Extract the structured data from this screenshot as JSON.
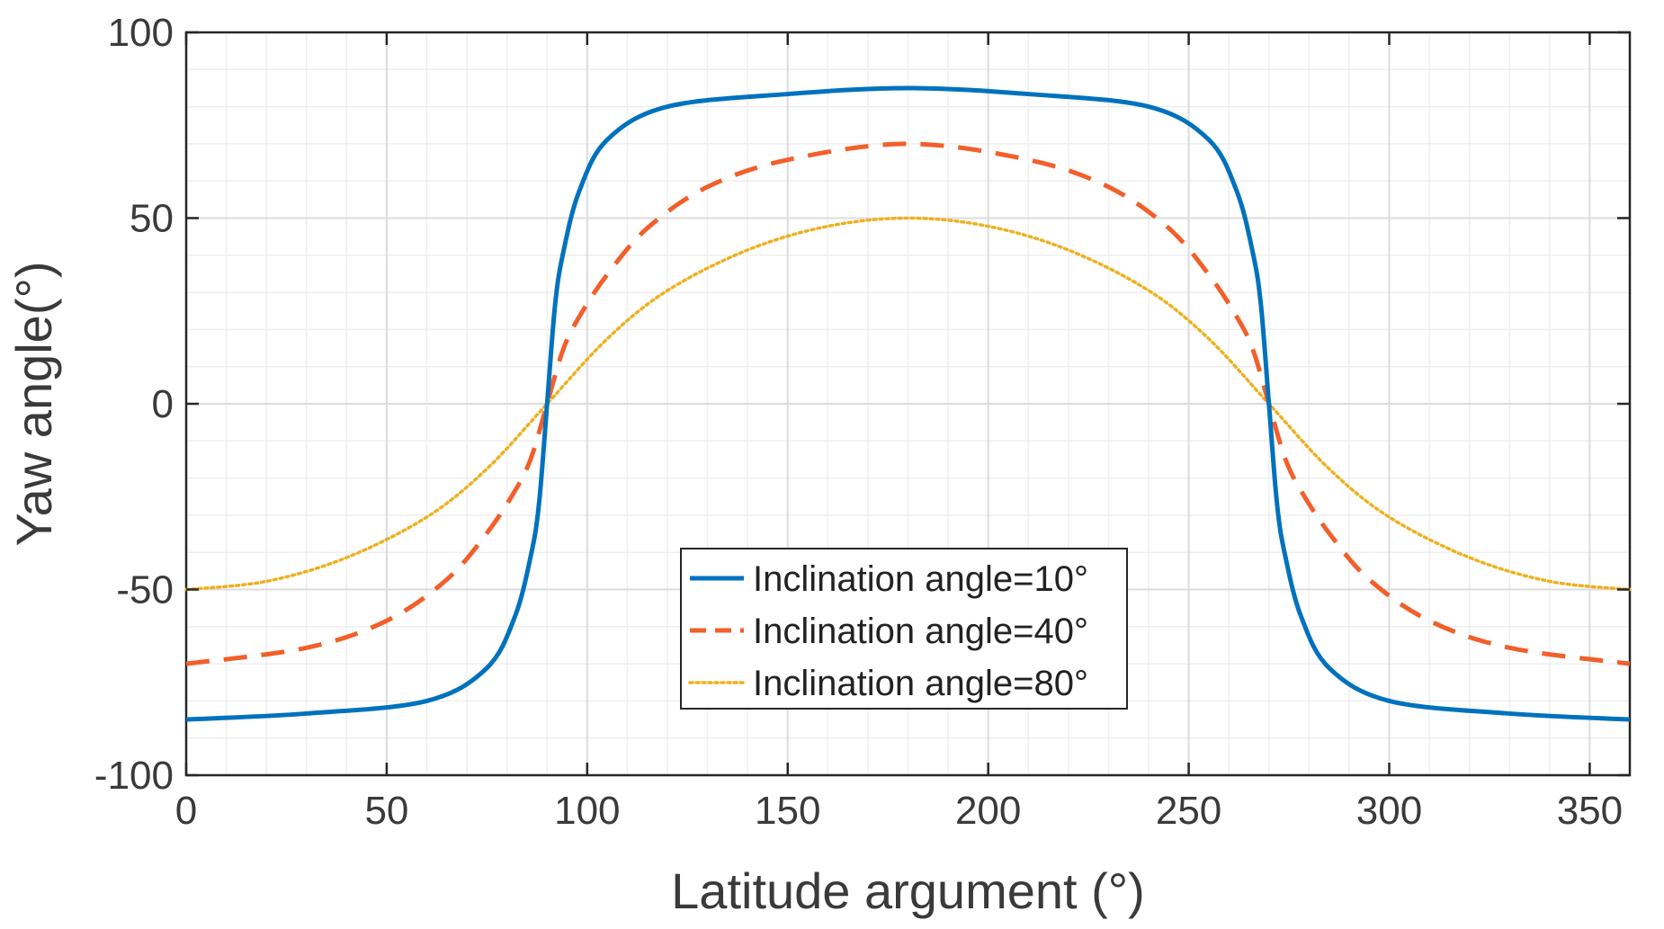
{
  "chart_data": {
    "type": "line",
    "title": "",
    "xlabel": "Latitude argument (°)",
    "ylabel": "Yaw angle(°)",
    "xlim": [
      0,
      360
    ],
    "ylim": [
      -100,
      100
    ],
    "x_ticks": [
      0,
      50,
      100,
      150,
      200,
      250,
      300,
      350
    ],
    "y_ticks": [
      -100,
      -50,
      0,
      50,
      100
    ],
    "x_tick_labels": [
      "0",
      "50",
      "100",
      "150",
      "200",
      "250",
      "300",
      "350"
    ],
    "y_tick_labels": [
      "-100",
      "-50",
      "0",
      "50",
      "100"
    ],
    "grid": true,
    "minor_grid": true,
    "legend_position": "bottom-center",
    "series": [
      {
        "name": "Inclination angle=10°",
        "inclination_deg": 10,
        "color": "#0072BD",
        "dash": "solid",
        "x": [
          0,
          30,
          60,
          75,
          82,
          86,
          88,
          90,
          92,
          94,
          98,
          105,
          120,
          150,
          180,
          210,
          240,
          255,
          262,
          266,
          268,
          270,
          272,
          274,
          278,
          285,
          300,
          330,
          360
        ],
        "y": [
          -85,
          -83.4,
          -80,
          -71.1,
          -57.2,
          -40.6,
          -26.7,
          0,
          26.7,
          40.6,
          57.2,
          71.1,
          80,
          83.4,
          85,
          83.4,
          80,
          71.1,
          57.2,
          40.6,
          26.7,
          0,
          -26.7,
          -40.6,
          -57.2,
          -71.1,
          -80,
          -83.4,
          -85
        ]
      },
      {
        "name": "Inclination angle=40°",
        "inclination_deg": 40,
        "color": "#F25F2A",
        "dash": "dashed",
        "x": [
          0,
          30,
          50,
          65,
          75,
          82,
          86,
          90,
          94,
          98,
          105,
          115,
          130,
          150,
          180,
          210,
          230,
          245,
          255,
          262,
          266,
          270,
          274,
          278,
          285,
          295,
          310,
          330,
          360
        ],
        "y": [
          -70,
          -65.7,
          -58.4,
          -47.3,
          -34.8,
          -23.4,
          -14.6,
          0,
          14.6,
          23.4,
          34.8,
          47.3,
          58.4,
          65.7,
          70,
          65.7,
          58.4,
          47.3,
          34.8,
          23.4,
          14.6,
          0,
          -14.6,
          -23.4,
          -34.8,
          -47.3,
          -58.4,
          -65.7,
          -70
        ]
      },
      {
        "name": "Inclination angle=80°",
        "inclination_deg": 80,
        "color": "#EDB120",
        "dash": "dotted",
        "x": [
          0,
          20,
          40,
          60,
          75,
          90,
          105,
          120,
          140,
          160,
          180,
          200,
          220,
          240,
          255,
          270,
          285,
          300,
          320,
          340,
          360
        ],
        "y": [
          -50,
          -47.8,
          -41.4,
          -30.5,
          -17.5,
          0,
          17.5,
          30.5,
          41.4,
          47.8,
          50,
          47.8,
          41.4,
          30.5,
          17.5,
          0,
          -17.5,
          -30.5,
          -41.4,
          -47.8,
          -50
        ]
      }
    ]
  }
}
